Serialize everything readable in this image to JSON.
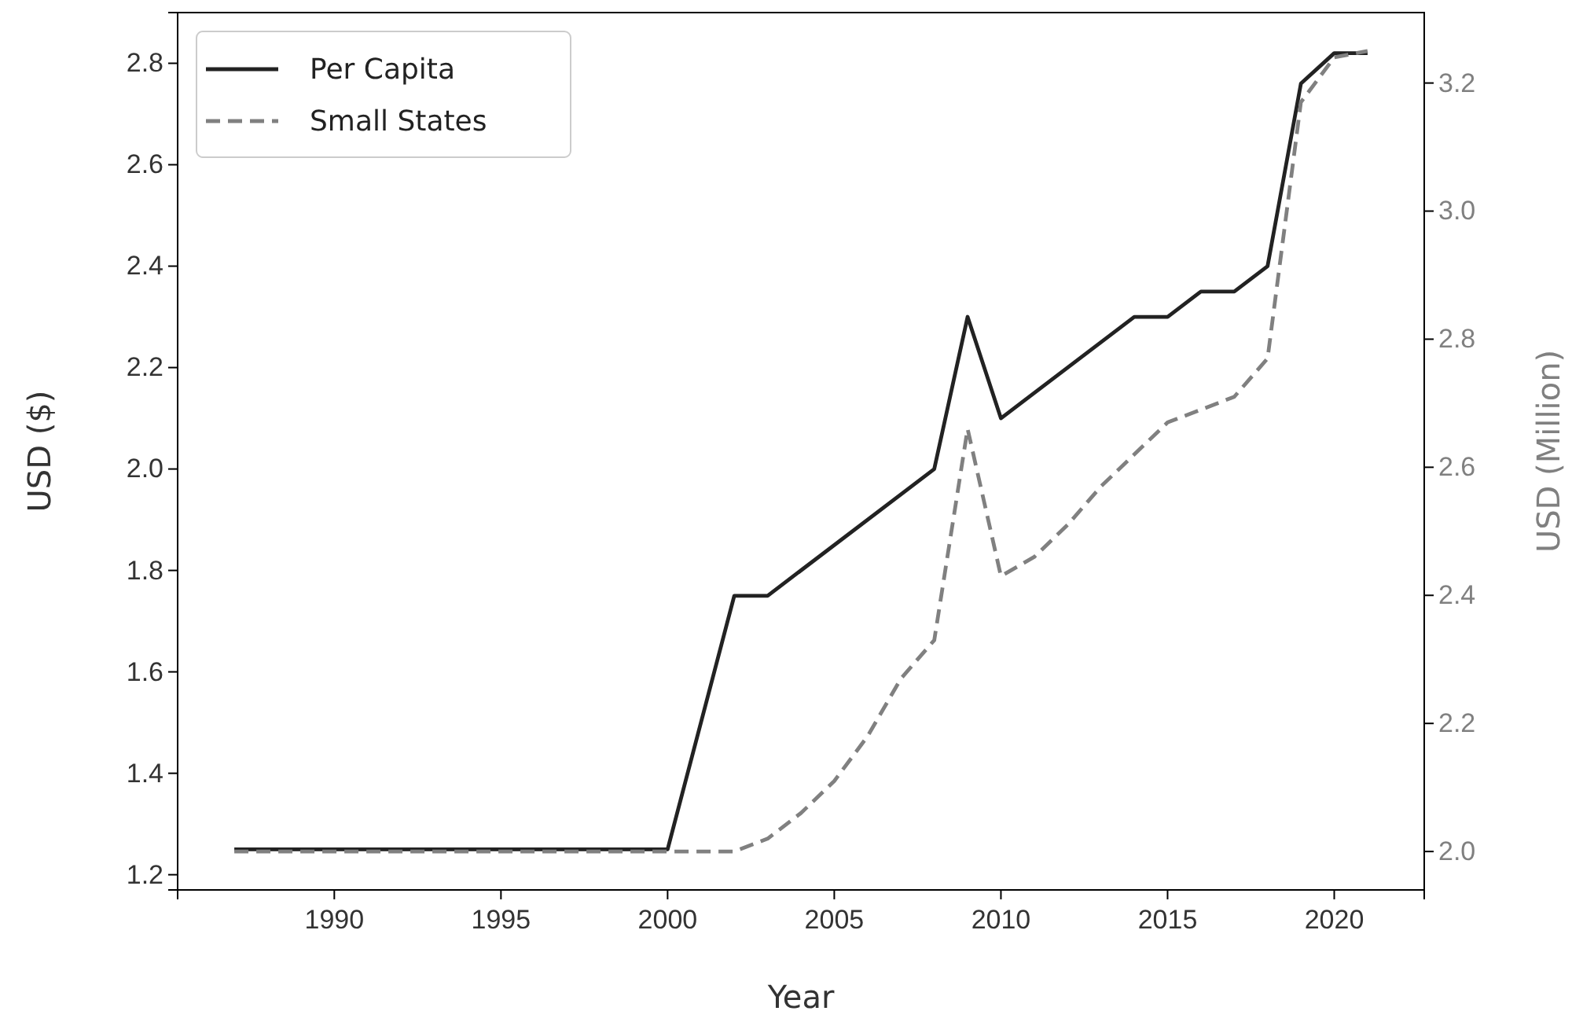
{
  "chart_data": {
    "type": "line",
    "xlabel": "Year",
    "ylabel": "USD ($)",
    "y2label": "USD (Million)",
    "xlim": [
      1985.3,
      2022.7
    ],
    "xticks": [
      1990,
      1995,
      2000,
      2005,
      2010,
      2015,
      2020
    ],
    "ylim": [
      1.17,
      2.9
    ],
    "yticks": [
      1.2,
      1.4,
      1.6,
      1.8,
      {
        "value": 2,
        "label": "2.0"
      },
      2.2,
      2.4,
      2.6,
      2.8
    ],
    "y2lim": [
      1.94,
      3.31
    ],
    "y2ticks": [
      {
        "value": 2,
        "label": "2.0"
      },
      2.2,
      2.4,
      2.6,
      2.8,
      {
        "value": 3,
        "label": "3.0"
      },
      3.2
    ],
    "legend": "top left",
    "grid": false,
    "series": [
      {
        "name": "Per Capita",
        "color": "#222222",
        "line_style": "solid",
        "x": [
          1987,
          2000,
          2002,
          2003,
          2008,
          2009,
          2010,
          2014,
          2015,
          2016,
          2017,
          2018,
          2019,
          2020,
          2021
        ],
        "values": [
          1.25,
          1.25,
          1.75,
          1.75,
          2.0,
          2.3,
          2.1,
          2.3,
          2.3,
          2.35,
          2.35,
          2.4,
          2.76,
          2.82,
          2.82
        ]
      },
      {
        "name": "Small States",
        "color": "#808080",
        "line_style": "dashed",
        "axis": "y2",
        "x": [
          1987,
          2002,
          2003,
          2004,
          2005,
          2006,
          2007,
          2008,
          2009,
          2010,
          2011,
          2012,
          2013,
          2014,
          2015,
          2016,
          2017,
          2018,
          2019,
          2020,
          2021
        ],
        "values": [
          2.0,
          2.0,
          2.02,
          2.06,
          2.11,
          2.18,
          2.27,
          2.33,
          2.66,
          2.43,
          2.46,
          2.51,
          2.57,
          2.62,
          2.67,
          2.69,
          2.71,
          2.77,
          3.17,
          3.24,
          3.25
        ]
      }
    ]
  }
}
